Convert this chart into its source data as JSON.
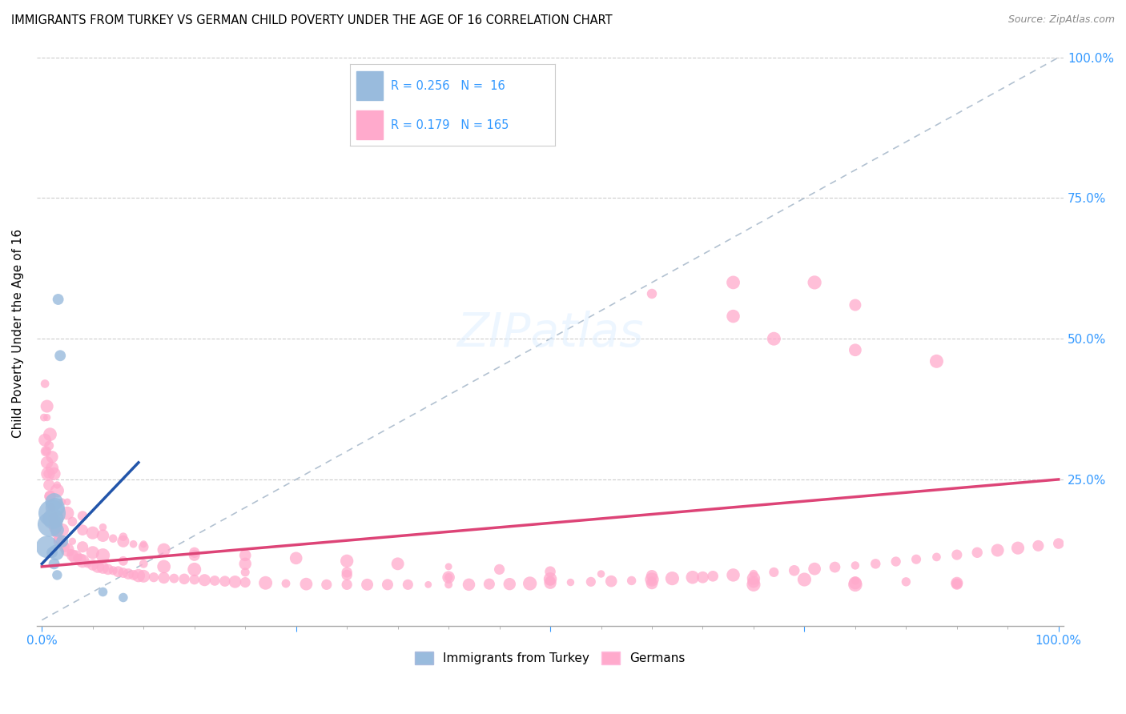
{
  "title": "IMMIGRANTS FROM TURKEY VS GERMAN CHILD POVERTY UNDER THE AGE OF 16 CORRELATION CHART",
  "source": "Source: ZipAtlas.com",
  "ylabel": "Child Poverty Under the Age of 16",
  "legend_labels": [
    "Immigrants from Turkey",
    "Germans"
  ],
  "blue_R": 0.256,
  "blue_N": 16,
  "pink_R": 0.179,
  "pink_N": 165,
  "blue_color": "#99BBDD",
  "pink_color": "#FFAACC",
  "blue_line_color": "#2255AA",
  "pink_line_color": "#DD4477",
  "diag_color": "#AABBCC",
  "axis_color": "#3399FF",
  "blue_scatter_x": [
    0.005,
    0.008,
    0.01,
    0.011,
    0.012,
    0.013,
    0.014,
    0.015,
    0.016,
    0.018,
    0.02,
    0.01,
    0.012,
    0.015,
    0.06,
    0.08
  ],
  "blue_scatter_y": [
    0.13,
    0.17,
    0.19,
    0.18,
    0.21,
    0.2,
    0.12,
    0.16,
    0.57,
    0.47,
    0.14,
    0.12,
    0.1,
    0.08,
    0.05,
    0.04
  ],
  "blue_scatter_sizes": [
    400,
    500,
    600,
    350,
    250,
    300,
    200,
    150,
    100,
    100,
    120,
    100,
    100,
    80,
    70,
    70
  ],
  "pink_scatter_x": [
    0.002,
    0.003,
    0.004,
    0.005,
    0.006,
    0.007,
    0.008,
    0.009,
    0.01,
    0.011,
    0.012,
    0.013,
    0.014,
    0.015,
    0.016,
    0.018,
    0.02,
    0.022,
    0.025,
    0.028,
    0.03,
    0.033,
    0.035,
    0.038,
    0.04,
    0.045,
    0.05,
    0.055,
    0.06,
    0.065,
    0.07,
    0.075,
    0.08,
    0.085,
    0.09,
    0.095,
    0.1,
    0.11,
    0.12,
    0.13,
    0.14,
    0.15,
    0.16,
    0.17,
    0.18,
    0.19,
    0.2,
    0.22,
    0.24,
    0.26,
    0.28,
    0.3,
    0.32,
    0.34,
    0.36,
    0.38,
    0.4,
    0.42,
    0.44,
    0.46,
    0.48,
    0.5,
    0.52,
    0.54,
    0.56,
    0.58,
    0.6,
    0.62,
    0.64,
    0.66,
    0.68,
    0.7,
    0.72,
    0.74,
    0.76,
    0.78,
    0.8,
    0.82,
    0.84,
    0.86,
    0.88,
    0.9,
    0.92,
    0.94,
    0.96,
    0.98,
    1.0,
    0.005,
    0.008,
    0.01,
    0.012,
    0.015,
    0.02,
    0.025,
    0.03,
    0.04,
    0.05,
    0.06,
    0.07,
    0.08,
    0.09,
    0.1,
    0.12,
    0.15,
    0.2,
    0.25,
    0.3,
    0.35,
    0.4,
    0.45,
    0.5,
    0.55,
    0.6,
    0.65,
    0.7,
    0.75,
    0.8,
    0.85,
    0.9,
    0.004,
    0.006,
    0.008,
    0.01,
    0.015,
    0.02,
    0.03,
    0.04,
    0.05,
    0.06,
    0.08,
    0.1,
    0.12,
    0.15,
    0.2,
    0.3,
    0.4,
    0.5,
    0.6,
    0.7,
    0.8,
    0.9,
    0.003,
    0.005,
    0.007,
    0.01,
    0.015,
    0.025,
    0.04,
    0.06,
    0.08,
    0.1,
    0.15,
    0.2,
    0.3,
    0.4,
    0.5,
    0.6,
    0.7,
    0.8,
    0.9
  ],
  "pink_scatter_y": [
    0.36,
    0.32,
    0.3,
    0.28,
    0.26,
    0.24,
    0.22,
    0.2,
    0.19,
    0.18,
    0.17,
    0.165,
    0.155,
    0.15,
    0.145,
    0.14,
    0.135,
    0.13,
    0.125,
    0.12,
    0.115,
    0.112,
    0.11,
    0.108,
    0.105,
    0.1,
    0.098,
    0.095,
    0.093,
    0.09,
    0.088,
    0.086,
    0.084,
    0.082,
    0.08,
    0.079,
    0.078,
    0.076,
    0.075,
    0.074,
    0.073,
    0.072,
    0.071,
    0.07,
    0.069,
    0.068,
    0.067,
    0.066,
    0.065,
    0.064,
    0.063,
    0.063,
    0.063,
    0.063,
    0.063,
    0.063,
    0.063,
    0.063,
    0.064,
    0.064,
    0.065,
    0.066,
    0.067,
    0.068,
    0.069,
    0.07,
    0.072,
    0.074,
    0.076,
    0.078,
    0.08,
    0.082,
    0.085,
    0.088,
    0.091,
    0.094,
    0.097,
    0.1,
    0.104,
    0.108,
    0.112,
    0.116,
    0.12,
    0.124,
    0.128,
    0.132,
    0.136,
    0.38,
    0.33,
    0.29,
    0.26,
    0.23,
    0.21,
    0.19,
    0.175,
    0.16,
    0.155,
    0.15,
    0.145,
    0.14,
    0.135,
    0.13,
    0.125,
    0.12,
    0.115,
    0.11,
    0.105,
    0.1,
    0.095,
    0.09,
    0.086,
    0.082,
    0.079,
    0.076,
    0.074,
    0.072,
    0.07,
    0.068,
    0.066,
    0.3,
    0.26,
    0.22,
    0.2,
    0.18,
    0.16,
    0.14,
    0.13,
    0.12,
    0.115,
    0.105,
    0.1,
    0.095,
    0.09,
    0.085,
    0.08,
    0.076,
    0.073,
    0.07,
    0.068,
    0.066,
    0.064,
    0.42,
    0.36,
    0.31,
    0.27,
    0.24,
    0.21,
    0.185,
    0.165,
    0.148,
    0.135,
    0.115,
    0.1,
    0.085,
    0.076,
    0.07,
    0.065,
    0.063,
    0.063,
    0.065
  ],
  "pink_outlier_x": [
    0.6,
    0.68,
    0.76,
    0.8,
    0.68,
    0.72,
    0.8,
    0.88
  ],
  "pink_outlier_y": [
    0.58,
    0.6,
    0.6,
    0.56,
    0.54,
    0.5,
    0.48,
    0.46
  ],
  "blue_line_x0": 0.0,
  "blue_line_x1": 0.095,
  "pink_line_x0": 0.0,
  "pink_line_x1": 1.0,
  "xlim": [
    0.0,
    1.0
  ],
  "ylim": [
    0.0,
    1.0
  ],
  "ytick_vals": [
    0.0,
    0.25,
    0.5,
    0.75,
    1.0
  ],
  "ytick_labels": [
    "",
    "25.0%",
    "50.0%",
    "75.0%",
    "100.0%"
  ]
}
